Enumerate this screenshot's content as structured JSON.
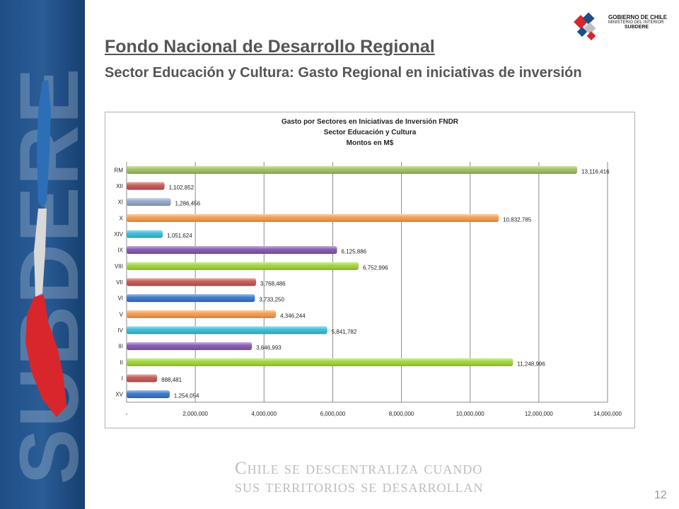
{
  "slide": {
    "title": "Fondo Nacional de Desarrollo Regional",
    "subtitle": "Sector Educación y Cultura: Gasto Regional en  iniciativas de inversión",
    "sidebar_word": "SUBDERE",
    "footer_line1": "Chile se descentraliza cuando",
    "footer_line2": "sus territorios se desarrollan",
    "page_number": "12"
  },
  "logo": {
    "line1": "GOBIERNO DE CHILE",
    "line2": "MINISTERIO DEL INTERIOR",
    "line3": "SUBDERE"
  },
  "colors": {
    "sidebar": "#1f4e86",
    "title_text": "#555555",
    "gridline": "#8c8c8c"
  },
  "chart_data": {
    "type": "bar",
    "orientation": "horizontal",
    "title_lines": [
      "Gasto por Sectores en Iniciativas de Inversión FNDR",
      "Sector Educación y Cultura",
      "Montos en M$"
    ],
    "categories": [
      "RM",
      "XII",
      "XI",
      "X",
      "XIV",
      "IX",
      "VIII",
      "VII",
      "VI",
      "V",
      "IV",
      "III",
      "II",
      "I",
      "XV"
    ],
    "values": [
      13116416,
      1102852,
      1286456,
      10832785,
      1051624,
      6125886,
      6752996,
      3768486,
      3733250,
      4346244,
      5841782,
      3646993,
      11248996,
      888481,
      1254054
    ],
    "value_labels": [
      "13,116,416",
      "1,102,852",
      "1,286,456",
      "10,832,785",
      "1,051,624",
      "6,125,886",
      "6,752,996",
      "3,768,486",
      "3,733,250",
      "4,346,244",
      "5,841,782",
      "3,646,993",
      "11,248,996",
      "888,481",
      "1,254,054"
    ],
    "bar_colors": [
      "#9bbb59",
      "#c0504d",
      "#8ea2c6",
      "#f79646",
      "#2fb8d4",
      "#7f4fae",
      "#9bd32f",
      "#c0504d",
      "#2f6fc6",
      "#f79646",
      "#2fb8d4",
      "#7f4fae",
      "#9bd32f",
      "#c0504d",
      "#2f6fc6"
    ],
    "xlim": [
      0,
      14000000
    ],
    "x_ticks": [
      0,
      2000000,
      4000000,
      6000000,
      8000000,
      10000000,
      12000000,
      14000000
    ],
    "x_tick_labels": [
      "-",
      "2,000,000",
      "4,000,000",
      "6,000,000",
      "8,000,000",
      "10,000,000",
      "12,000,000",
      "14,000,000"
    ],
    "grid": true,
    "legend": "none"
  }
}
